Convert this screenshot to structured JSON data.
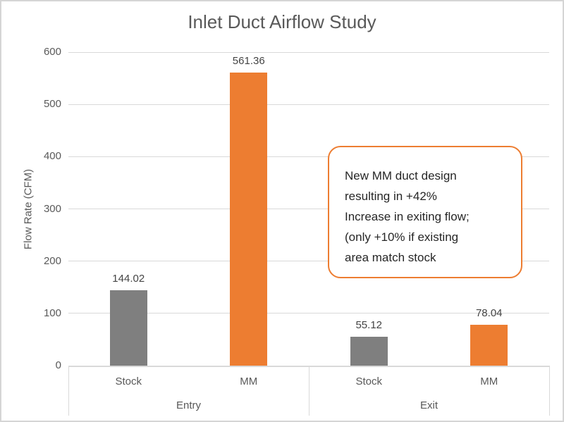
{
  "chart": {
    "title": "Inlet Duct Airflow Study",
    "ylabel": "Flow Rate (CFM)"
  },
  "annotation": {
    "text": "New MM duct design\nresulting in +42%\nIncrease in exiting flow;\n(only +10% if existing\narea match stock",
    "border_color": "#ED7D31"
  },
  "colors": {
    "stock_series": "#7F7F7F",
    "mm_series": "#ED7D31",
    "gridline": "#D9D9D9",
    "axis_text": "#595959",
    "data_label_text": "#444444",
    "title_text": "#595959",
    "frame_border": "#D5D5D5"
  },
  "chart_data": {
    "type": "bar",
    "title": "Inlet Duct Airflow Study",
    "xlabel": "",
    "ylabel": "Flow Rate (CFM)",
    "ylim": [
      0,
      600
    ],
    "ytick_step": 100,
    "grid": true,
    "legend": false,
    "groups": [
      "Entry",
      "Exit"
    ],
    "categories": [
      "Stock",
      "MM"
    ],
    "points": [
      {
        "group": "Entry",
        "category": "Stock",
        "value": 144.02,
        "color": "#7F7F7F"
      },
      {
        "group": "Entry",
        "category": "MM",
        "value": 561.36,
        "color": "#ED7D31"
      },
      {
        "group": "Exit",
        "category": "Stock",
        "value": 55.12,
        "color": "#7F7F7F"
      },
      {
        "group": "Exit",
        "category": "MM",
        "value": 78.04,
        "color": "#ED7D31"
      }
    ],
    "annotation_text": "New MM duct design resulting in +42% Increase in exiting flow; (only +10% if existing area match stock"
  }
}
